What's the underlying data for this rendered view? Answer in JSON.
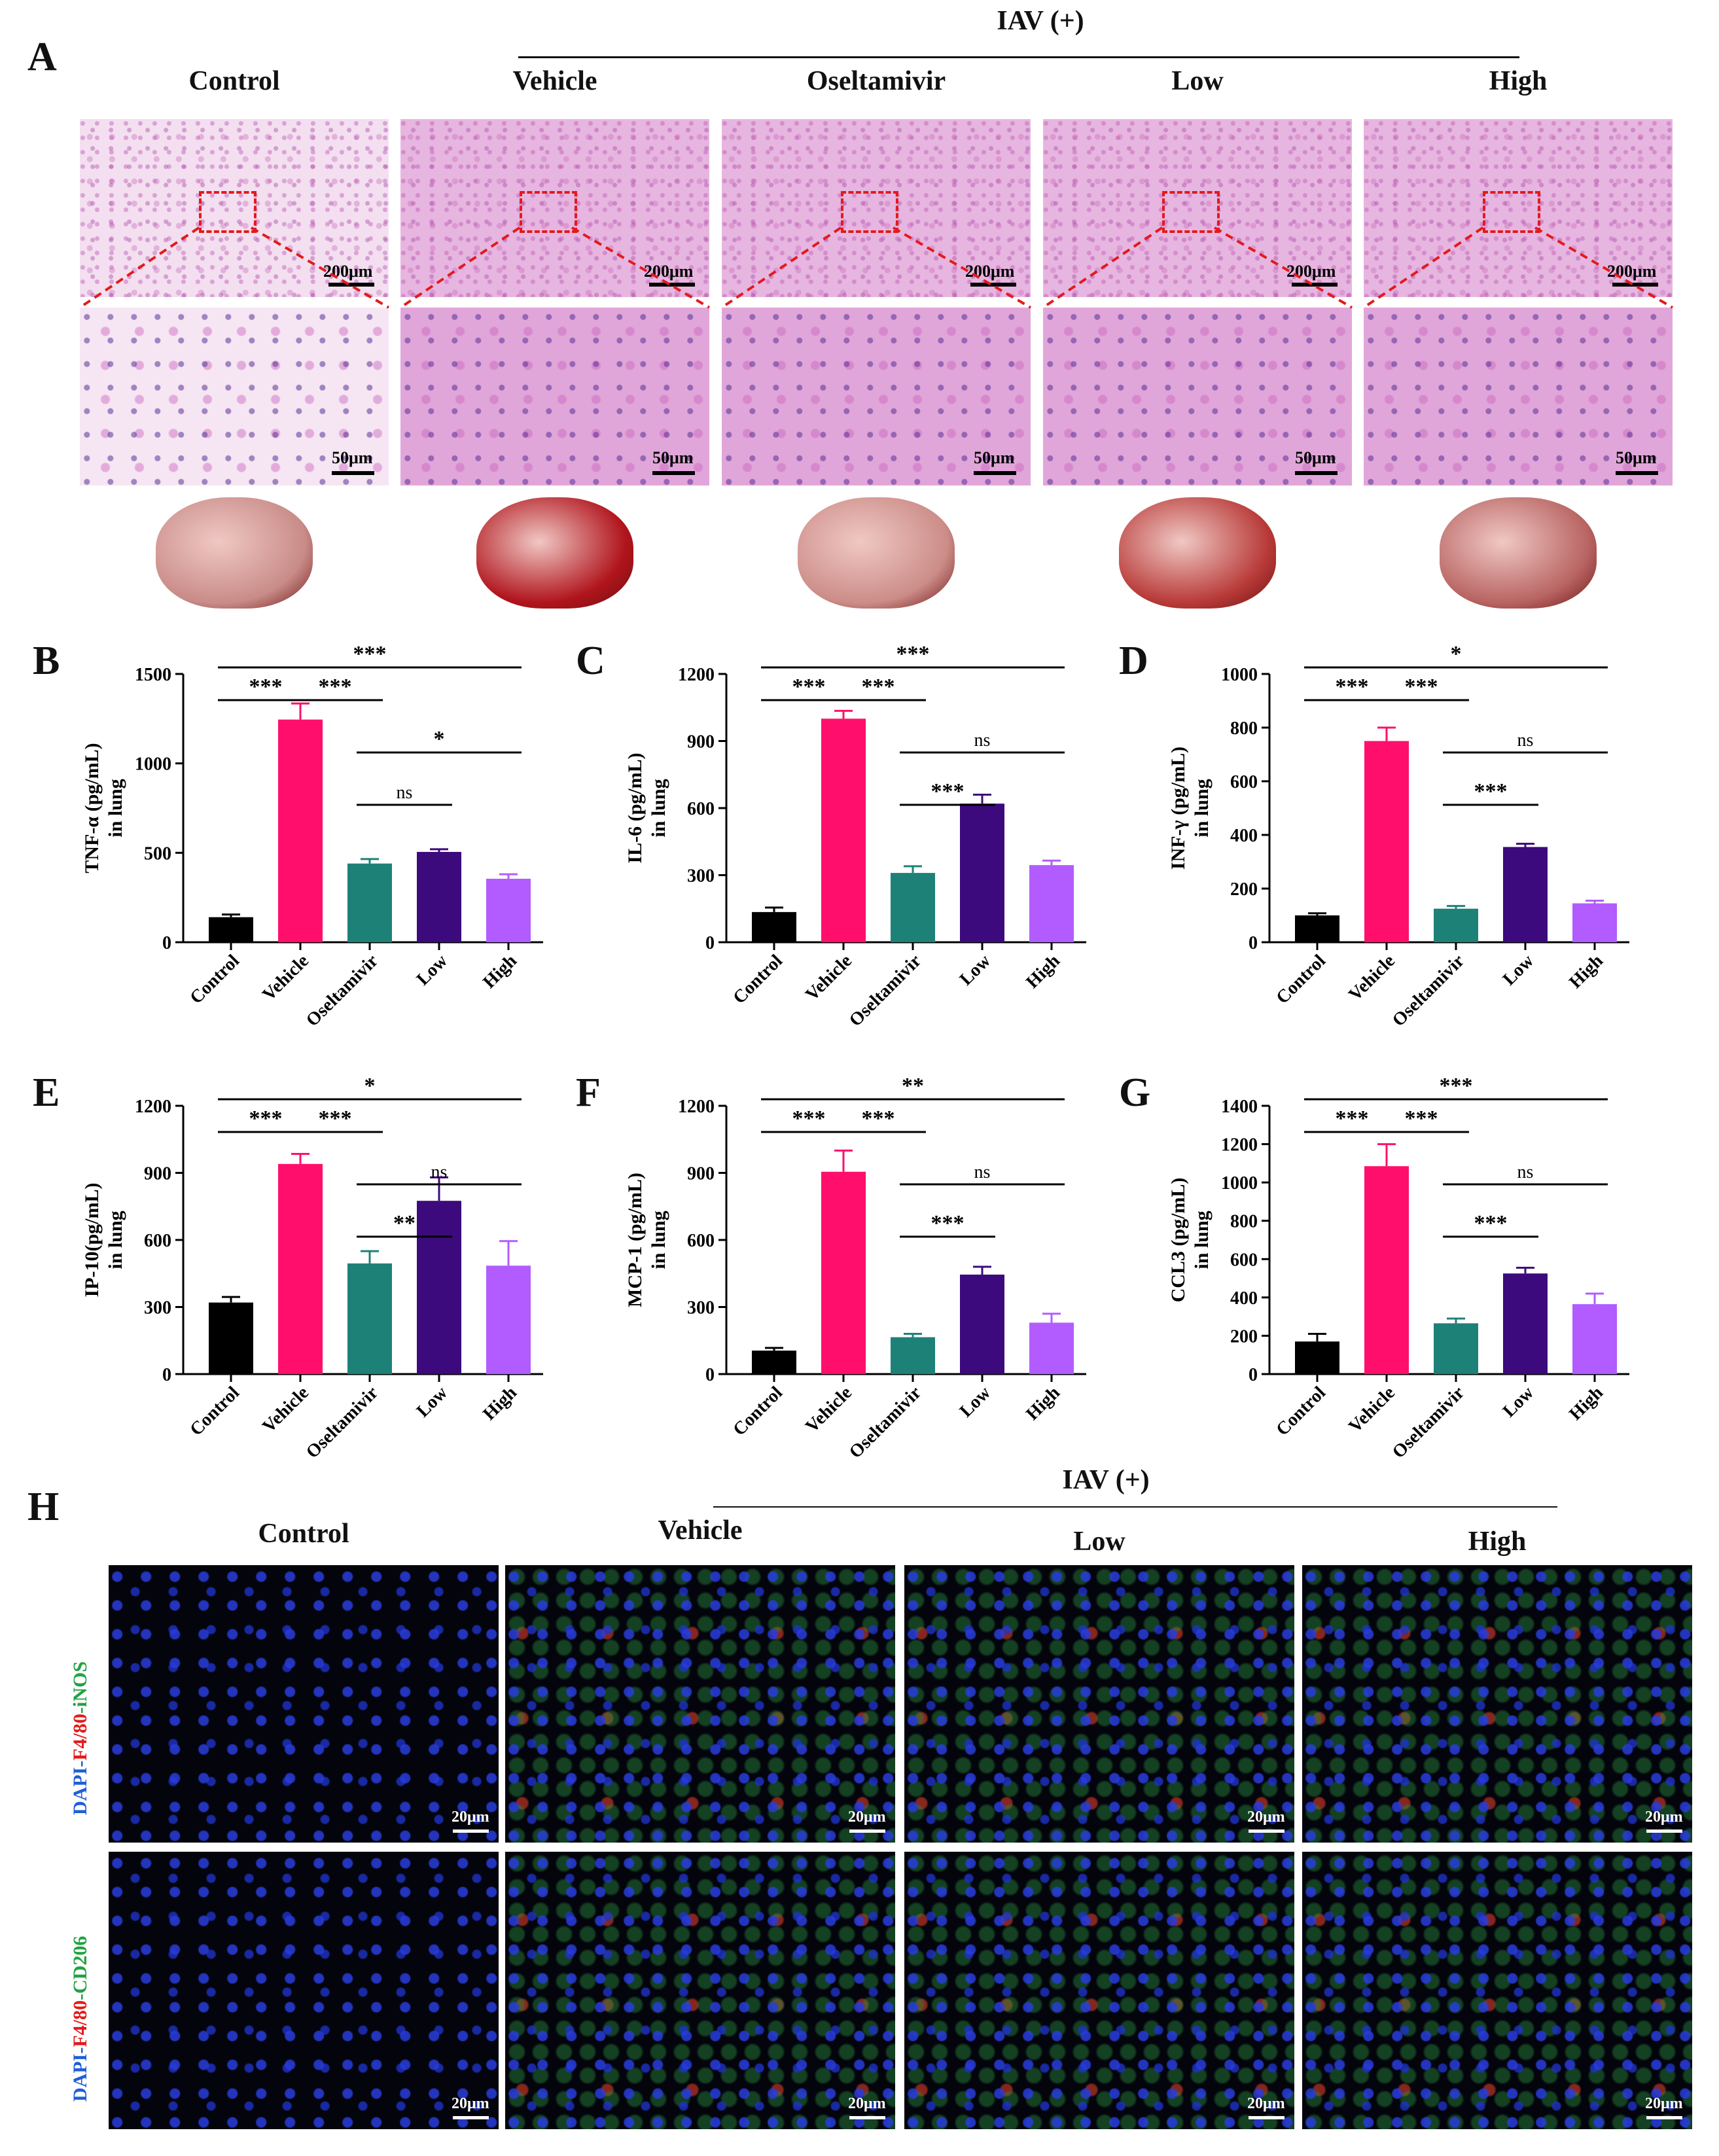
{
  "panel_a": {
    "letter": "A",
    "group_bracket": "IAV (+)",
    "groups": [
      "Control",
      "Vehicle",
      "Oseltamivir",
      "Low",
      "High"
    ],
    "scale_top": "200μm",
    "scale_bottom": "50μm"
  },
  "panel_h": {
    "letter": "H",
    "group_bracket": "IAV (+)",
    "groups": [
      "Control",
      "Vehicle",
      "Low",
      "High"
    ],
    "row_labels": [
      {
        "parts": [
          "DAPI-",
          "F4/80",
          "-iNOS"
        ],
        "colors": [
          "#1f5fd6",
          "#e31a1c",
          "#22a243"
        ]
      },
      {
        "parts": [
          "DAPI-",
          "F4/80",
          "-CD206"
        ],
        "colors": [
          "#1f5fd6",
          "#e31a1c",
          "#22a243"
        ]
      }
    ],
    "scale": "20μm"
  },
  "colors": {
    "Control": "#000000",
    "Vehicle": "#ff0f6b",
    "Oseltamivir": "#1e8178",
    "Low": "#3c0a7c",
    "High": "#b25cff"
  },
  "chart_data": [
    {
      "letter": "B",
      "type": "bar",
      "categories": [
        "Control",
        "Vehicle",
        "Oseltamivir",
        "Low",
        "High"
      ],
      "values": [
        140,
        1245,
        440,
        505,
        355
      ],
      "errors": [
        15,
        90,
        25,
        15,
        25
      ],
      "ylabel": "TNF-α (pg/mL)\nin lung",
      "ylim": [
        0,
        1500
      ],
      "yticks": [
        0,
        500,
        1000,
        1500
      ],
      "annotations": [
        {
          "from": 0,
          "to": 1,
          "text": "***"
        },
        {
          "from": 1,
          "to": 2,
          "text": "***"
        },
        {
          "from": 0,
          "to": 4,
          "text": "***"
        },
        {
          "from": 2,
          "to": 3,
          "text": "ns"
        },
        {
          "from": 2,
          "to": 4,
          "text": "*"
        }
      ]
    },
    {
      "letter": "C",
      "type": "bar",
      "categories": [
        "Control",
        "Vehicle",
        "Oseltamivir",
        "Low",
        "High"
      ],
      "values": [
        135,
        1000,
        310,
        620,
        345
      ],
      "errors": [
        20,
        35,
        30,
        40,
        20
      ],
      "ylabel": "IL-6 (pg/mL)\nin lung",
      "ylim": [
        0,
        1200
      ],
      "yticks": [
        0,
        300,
        600,
        900,
        1200
      ],
      "annotations": [
        {
          "from": 0,
          "to": 1,
          "text": "***"
        },
        {
          "from": 1,
          "to": 2,
          "text": "***"
        },
        {
          "from": 0,
          "to": 4,
          "text": "***"
        },
        {
          "from": 2,
          "to": 4,
          "text": "ns"
        },
        {
          "from": 2,
          "to": 3,
          "text": "***"
        }
      ]
    },
    {
      "letter": "D",
      "type": "bar",
      "categories": [
        "Control",
        "Vehicle",
        "Oseltamivir",
        "Low",
        "High"
      ],
      "values": [
        100,
        750,
        125,
        355,
        145
      ],
      "errors": [
        8,
        50,
        10,
        12,
        10
      ],
      "ylabel": "INF-γ (pg/mL)\nin lung",
      "ylim": [
        0,
        1000
      ],
      "yticks": [
        0,
        200,
        400,
        600,
        800,
        1000
      ],
      "annotations": [
        {
          "from": 0,
          "to": 1,
          "text": "***"
        },
        {
          "from": 1,
          "to": 2,
          "text": "***"
        },
        {
          "from": 0,
          "to": 4,
          "text": "*"
        },
        {
          "from": 2,
          "to": 4,
          "text": "ns"
        },
        {
          "from": 2,
          "to": 3,
          "text": "***"
        }
      ]
    },
    {
      "letter": "E",
      "type": "bar",
      "categories": [
        "Control",
        "Vehicle",
        "Oseltamivir",
        "Low",
        "High"
      ],
      "values": [
        320,
        940,
        495,
        775,
        485
      ],
      "errors": [
        25,
        45,
        55,
        105,
        110
      ],
      "ylabel": "IP-10(pg/mL)\nin lung",
      "ylim": [
        0,
        1200
      ],
      "yticks": [
        0,
        300,
        600,
        900,
        1200
      ],
      "annotations": [
        {
          "from": 0,
          "to": 1,
          "text": "***"
        },
        {
          "from": 1,
          "to": 2,
          "text": "***"
        },
        {
          "from": 0,
          "to": 4,
          "text": "*"
        },
        {
          "from": 2,
          "to": 4,
          "text": "ns"
        },
        {
          "from": 2,
          "to": 3,
          "text": "**"
        }
      ]
    },
    {
      "letter": "F",
      "type": "bar",
      "categories": [
        "Control",
        "Vehicle",
        "Oseltamivir",
        "Low",
        "High"
      ],
      "values": [
        105,
        905,
        165,
        445,
        230
      ],
      "errors": [
        12,
        95,
        15,
        35,
        40
      ],
      "ylabel": "MCP-1 (pg/mL)\nin lung",
      "ylim": [
        0,
        1200
      ],
      "yticks": [
        0,
        300,
        600,
        900,
        1200
      ],
      "annotations": [
        {
          "from": 0,
          "to": 1,
          "text": "***"
        },
        {
          "from": 1,
          "to": 2,
          "text": "***"
        },
        {
          "from": 0,
          "to": 4,
          "text": "**"
        },
        {
          "from": 2,
          "to": 4,
          "text": "ns"
        },
        {
          "from": 2,
          "to": 3,
          "text": "***"
        }
      ]
    },
    {
      "letter": "G",
      "type": "bar",
      "categories": [
        "Control",
        "Vehicle",
        "Oseltamivir",
        "Low",
        "High"
      ],
      "values": [
        170,
        1085,
        265,
        525,
        365
      ],
      "errors": [
        40,
        115,
        25,
        30,
        55
      ],
      "ylabel": "CCL3 (pg/mL)\nin lung",
      "ylim": [
        0,
        1400
      ],
      "yticks": [
        0,
        200,
        400,
        600,
        800,
        1000,
        1200,
        1400
      ],
      "annotations": [
        {
          "from": 0,
          "to": 1,
          "text": "***"
        },
        {
          "from": 1,
          "to": 2,
          "text": "***"
        },
        {
          "from": 0,
          "to": 4,
          "text": "***"
        },
        {
          "from": 2,
          "to": 4,
          "text": "ns"
        },
        {
          "from": 2,
          "to": 3,
          "text": "***"
        }
      ]
    }
  ]
}
